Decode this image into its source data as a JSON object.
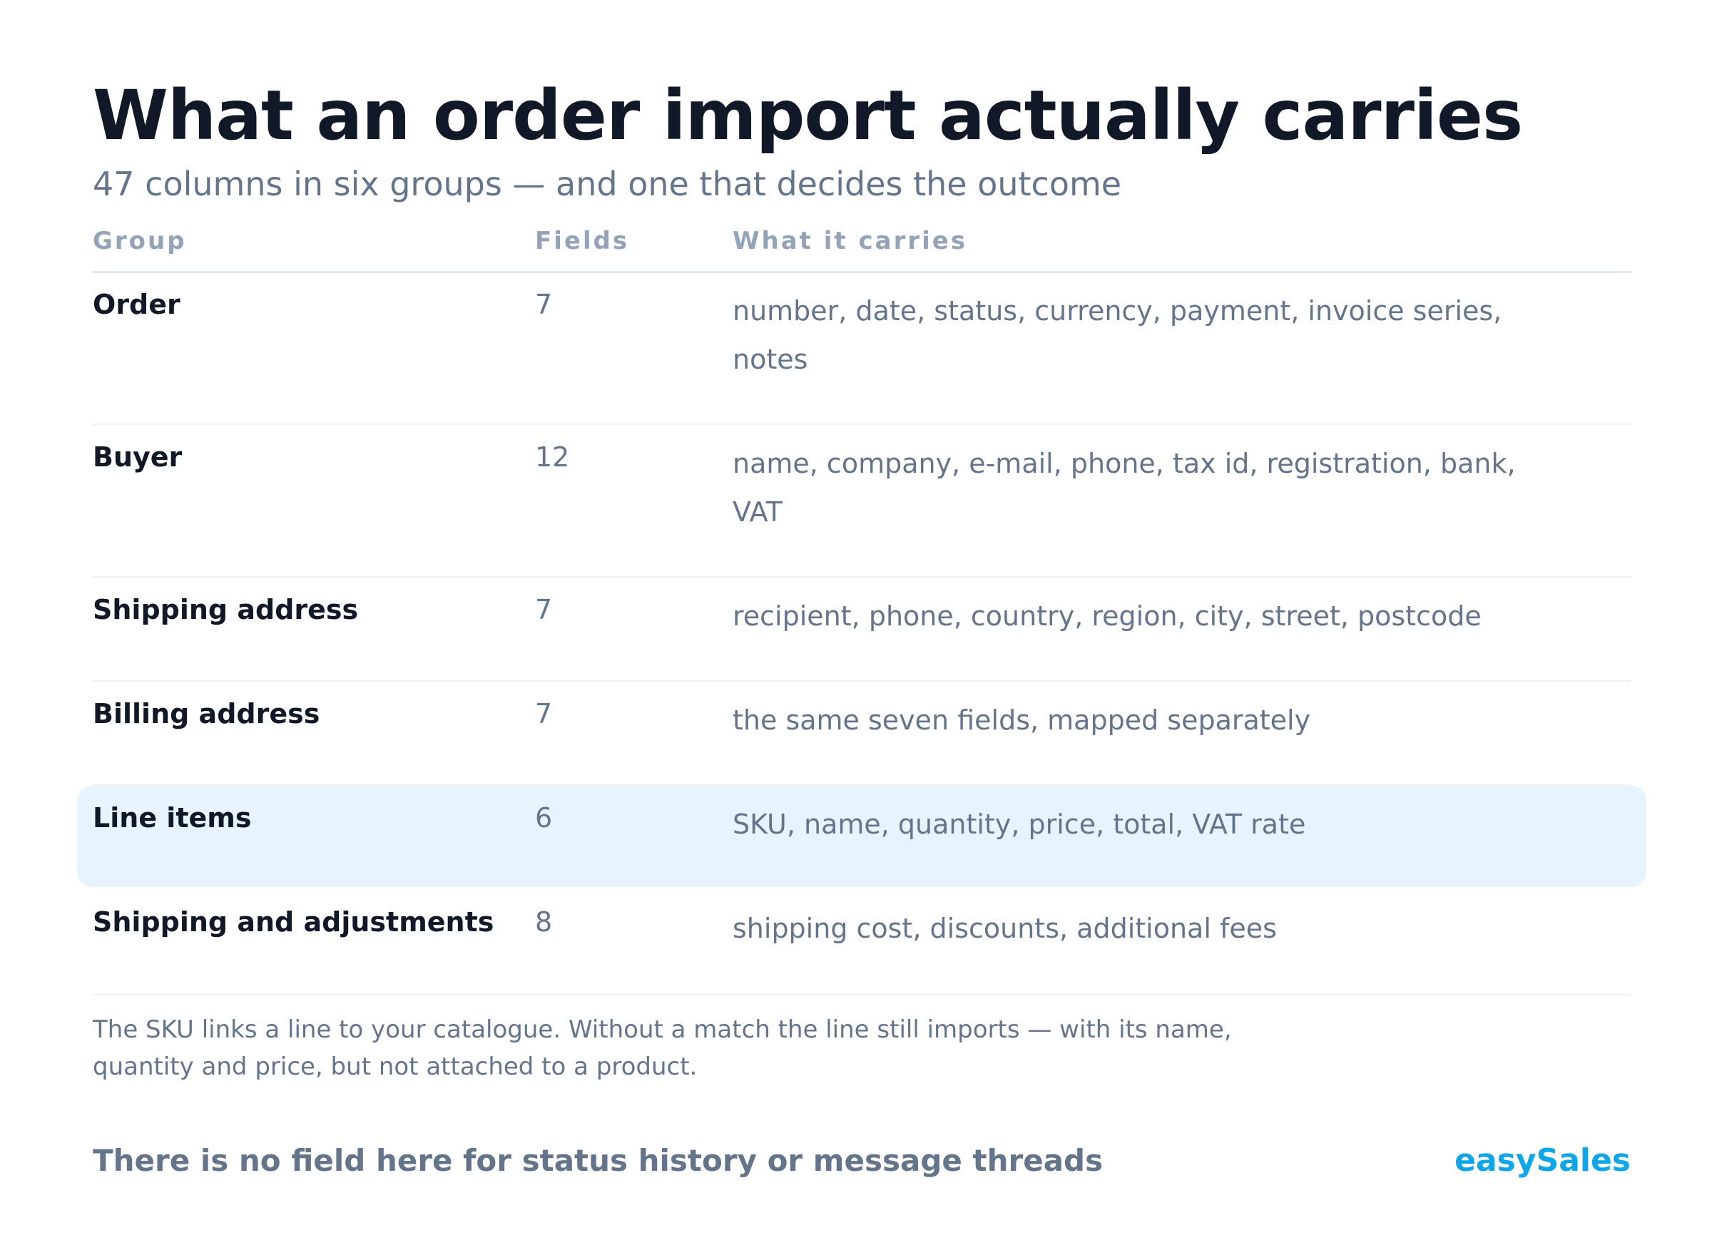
{
  "title": "What an order import actually carries",
  "subtitle": "47 columns in six groups — and one that decides the outcome",
  "table": {
    "headers": {
      "group": "Group",
      "fields": "Fields",
      "carries": "What it carries"
    },
    "rows": [
      {
        "group": "Order",
        "fields": "7",
        "carries": "number, date, status, currency, payment, invoice series, notes"
      },
      {
        "group": "Buyer",
        "fields": "12",
        "carries": "name, company, e-mail, phone, tax id, registration, bank, VAT"
      },
      {
        "group": "Shipping address",
        "fields": "7",
        "carries": "recipient, phone, country, region, city, street, postcode"
      },
      {
        "group": "Billing address",
        "fields": "7",
        "carries": "the same seven fields, mapped separately"
      },
      {
        "group": "Line items",
        "fields": "6",
        "carries": "SKU, name, quantity, price, total, VAT rate",
        "highlighted": true
      },
      {
        "group": "Shipping and adjustments",
        "fields": "8",
        "carries": "shipping cost, discounts, additional fees"
      }
    ]
  },
  "note": "The SKU links a line to your catalogue. Without a match the line still imports — with its name, quantity and price, but not attached to a product.",
  "footer": {
    "caption": "There is no field here for status history or message threads",
    "brand": "easySales"
  },
  "colors": {
    "title": "#111827",
    "muted": "#64748b",
    "header": "#94a3b8",
    "highlight_bg": "#e8f4fd",
    "brand": "#0ea5e9"
  }
}
